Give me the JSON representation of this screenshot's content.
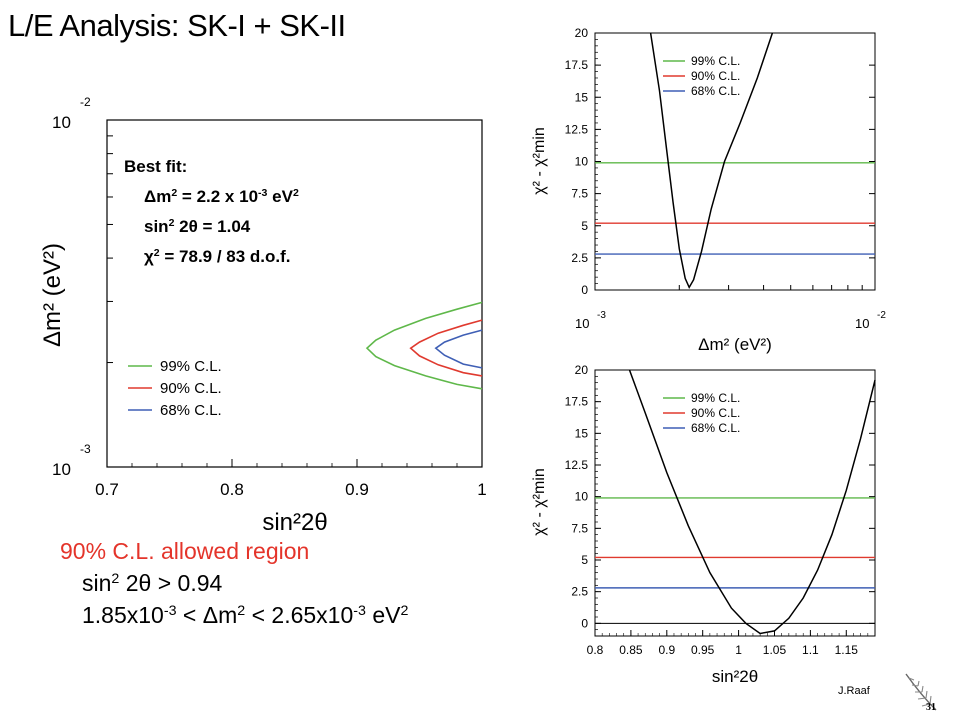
{
  "slide": {
    "title": "L/E Analysis: SK-I + SK-II",
    "credit": "J.Raaf",
    "page_number": "31"
  },
  "best_fit": {
    "heading": "Best fit:",
    "dm2_prefix": "Δm",
    "dm2_middle": " = 2.2 x 10",
    "dm2_exp": "-3",
    "dm2_unit": " eV",
    "sin_prefix": "sin",
    "sin_value": " 2θ = 1.04",
    "chi_prefix": "χ",
    "chi_value": " = 78.9 / 83 d.o.f.",
    "sq": "2"
  },
  "allowed_region": {
    "heading": "90% C.L. allowed region",
    "line1_prefix": "sin",
    "line1_suffix": " 2θ > 0.94",
    "line2_a": "1.85x10",
    "line2_b": " < Δm",
    "line2_c": " < 2.65x10",
    "line2_d": " eV",
    "exp": "-3",
    "sq": "2"
  },
  "colors": {
    "cl99": "#5fb84a",
    "cl90": "#e03a2f",
    "cl68": "#3f5fb5",
    "region_heading": "#e4342a"
  },
  "chart_data": [
    {
      "type": "contour",
      "xlabel": "sin²2θ",
      "ylabel": "Δm² (eV²)",
      "xlim": [
        0.7,
        1.0
      ],
      "ylim": [
        0.001,
        0.01
      ],
      "ylog": true,
      "x_ticks": [
        "0.7",
        "0.8",
        "0.9",
        "1"
      ],
      "y_tick_base": "10",
      "y_tick_exps": [
        "-3",
        "-2"
      ],
      "legend": [
        "99% C.L.",
        "90% C.L.",
        "68% C.L."
      ],
      "legend_position": "bottom-left",
      "series": [
        {
          "name": "99% C.L.",
          "x": [
            1.0,
            0.98,
            0.955,
            0.93,
            0.915,
            0.908,
            0.915,
            0.93,
            0.955,
            0.98,
            1.0
          ],
          "y": [
            0.00298,
            0.00285,
            0.00268,
            0.00248,
            0.00232,
            0.0022,
            0.00208,
            0.00196,
            0.00183,
            0.00173,
            0.00168
          ]
        },
        {
          "name": "90% C.L.",
          "x": [
            1.0,
            0.985,
            0.965,
            0.95,
            0.943,
            0.95,
            0.965,
            0.985,
            1.0
          ],
          "y": [
            0.00265,
            0.00256,
            0.00243,
            0.00229,
            0.0022,
            0.00209,
            0.00197,
            0.00187,
            0.00183
          ]
        },
        {
          "name": "68% C.L.",
          "x": [
            1.0,
            0.985,
            0.97,
            0.963,
            0.97,
            0.985,
            1.0
          ],
          "y": [
            0.00248,
            0.0024,
            0.00229,
            0.0022,
            0.0021,
            0.00198,
            0.00193
          ]
        }
      ]
    },
    {
      "type": "line",
      "xlabel": "Δm² (eV²)",
      "ylabel": "χ² - χ²min",
      "xlim": [
        0.001,
        0.01
      ],
      "xlog": true,
      "ylim": [
        0,
        20
      ],
      "x_tick_base": "10",
      "x_tick_exps": [
        "-3",
        "-2"
      ],
      "y_ticks": [
        "0",
        "2.5",
        "5",
        "7.5",
        "10",
        "12.5",
        "15",
        "17.5",
        "20"
      ],
      "legend": [
        "99% C.L.",
        "90% C.L.",
        "68% C.L."
      ],
      "legend_position": "top-right",
      "reference_lines": [
        {
          "name": "99% C.L.",
          "y": 9.9
        },
        {
          "name": "90% C.L.",
          "y": 5.2
        },
        {
          "name": "68% C.L.",
          "y": 2.8
        }
      ],
      "series": [
        {
          "name": "χ² curve",
          "x": [
            0.00158,
            0.0017,
            0.0018,
            0.0019,
            0.002,
            0.0021,
            0.00217,
            0.00225,
            0.0024,
            0.0026,
            0.0029,
            0.0033,
            0.0038,
            0.0043
          ],
          "y": [
            20,
            15.5,
            11.0,
            6.8,
            3.2,
            0.9,
            0.2,
            0.8,
            3.0,
            6.3,
            10.0,
            13.0,
            16.5,
            20
          ]
        }
      ]
    },
    {
      "type": "line",
      "xlabel": "sin²2θ",
      "ylabel": "χ² - χ²min",
      "xlim": [
        0.8,
        1.19
      ],
      "ylim": [
        -1,
        20
      ],
      "x_ticks": [
        "0.8",
        "0.85",
        "0.9",
        "0.95",
        "1",
        "1.05",
        "1.1",
        "1.15"
      ],
      "y_ticks": [
        "0",
        "2.5",
        "5",
        "7.5",
        "10",
        "12.5",
        "15",
        "17.5",
        "20"
      ],
      "legend": [
        "99% C.L.",
        "90% C.L.",
        "68% C.L."
      ],
      "legend_position": "top-right",
      "reference_lines": [
        {
          "name": "99% C.L.",
          "y": 9.9
        },
        {
          "name": "90% C.L.",
          "y": 5.2
        },
        {
          "name": "68% C.L.",
          "y": 2.8
        }
      ],
      "series": [
        {
          "name": "χ² curve",
          "x": [
            0.848,
            0.87,
            0.9,
            0.93,
            0.96,
            0.99,
            1.01,
            1.03,
            1.05,
            1.07,
            1.09,
            1.11,
            1.13,
            1.15,
            1.17,
            1.19
          ],
          "y": [
            20,
            16.6,
            11.9,
            7.7,
            4.0,
            1.2,
            0.0,
            -0.8,
            -0.6,
            0.4,
            2.0,
            4.2,
            7.0,
            10.5,
            14.6,
            19.2
          ]
        }
      ]
    }
  ]
}
